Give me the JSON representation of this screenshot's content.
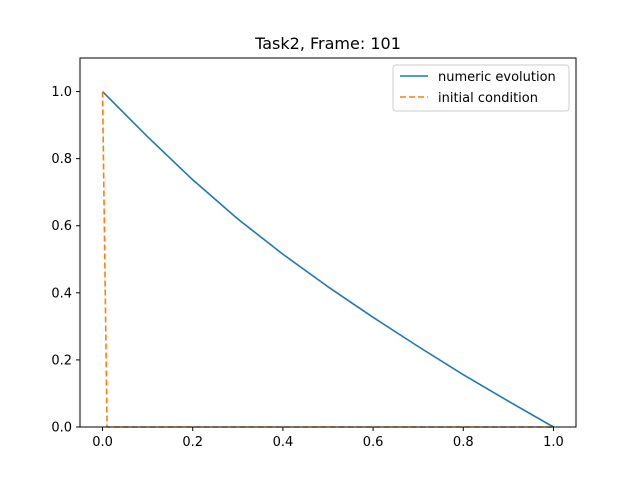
{
  "chart_data": {
    "type": "line",
    "title": "Task2, Frame: 101",
    "xlabel": "",
    "ylabel": "",
    "xlim": [
      -0.05,
      1.05
    ],
    "ylim": [
      0.0,
      1.1
    ],
    "xticks": [
      0.0,
      0.2,
      0.4,
      0.6,
      0.8,
      1.0
    ],
    "yticks": [
      0.0,
      0.2,
      0.4,
      0.6,
      0.8,
      1.0
    ],
    "xtick_labels": [
      "0.0",
      "0.2",
      "0.4",
      "0.6",
      "0.8",
      "1.0"
    ],
    "ytick_labels": [
      "0.0",
      "0.2",
      "0.4",
      "0.6",
      "0.8",
      "1.0"
    ],
    "grid": false,
    "legend_position": "top-right",
    "series": [
      {
        "name": "numeric evolution",
        "color": "#1f77b4",
        "style": "solid",
        "x": [
          0.0,
          0.1,
          0.2,
          0.3,
          0.4,
          0.5,
          0.6,
          0.7,
          0.8,
          0.9,
          1.0
        ],
        "y": [
          1.0,
          0.865,
          0.737,
          0.62,
          0.515,
          0.418,
          0.327,
          0.24,
          0.156,
          0.077,
          0.0
        ]
      },
      {
        "name": "initial condition",
        "color": "#ff7f0e",
        "style": "dashed",
        "x": [
          0.0,
          0.01,
          1.0
        ],
        "y": [
          1.0,
          0.0,
          0.0
        ]
      }
    ]
  }
}
